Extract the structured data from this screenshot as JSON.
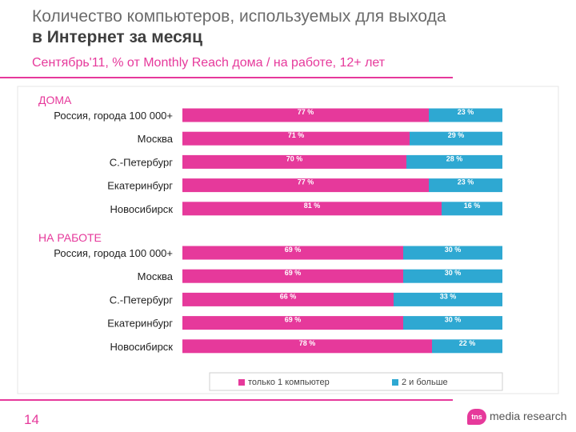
{
  "slide": {
    "title_line1": "Количество компьютеров, используемых для выхода",
    "title_line2": "в Интернет за месяц",
    "subtitle": "Сентябрь'11, % от Monthly Reach дома / на работе, 12+ лет",
    "page_number": "14",
    "logo_mark": "tns",
    "logo_text": "media research"
  },
  "colors": {
    "pink": "#e6399b",
    "blue": "#2ea8d2",
    "accent": "#e6399b"
  },
  "chart_data": {
    "type": "bar",
    "orientation": "horizontal",
    "stacked": true,
    "percent_suffix": " %",
    "groups": [
      {
        "label": "ДОМА",
        "categories": [
          "Россия, города 100 000+",
          "Москва",
          "С.-Петербург",
          "Екатеринбург",
          "Новосибирск"
        ],
        "series": [
          {
            "name": "только 1 компьютер",
            "values": [
              77,
              71,
              70,
              77,
              81
            ]
          },
          {
            "name": "2 и больше",
            "values": [
              23,
              29,
              28,
              23,
              16
            ]
          }
        ]
      },
      {
        "label": "НА РАБОТЕ",
        "categories": [
          "Россия, города 100 000+",
          "Москва",
          "С.-Петербург",
          "Екатеринбург",
          "Новосибирск"
        ],
        "series": [
          {
            "name": "только 1 компьютер",
            "values": [
              69,
              69,
              66,
              69,
              78
            ]
          },
          {
            "name": "2 и больше",
            "values": [
              30,
              30,
              33,
              30,
              22
            ]
          }
        ]
      }
    ],
    "legend": [
      "только 1 компьютер",
      "2 и больше"
    ],
    "legend_position": "bottom",
    "xlim": [
      0,
      100
    ]
  }
}
